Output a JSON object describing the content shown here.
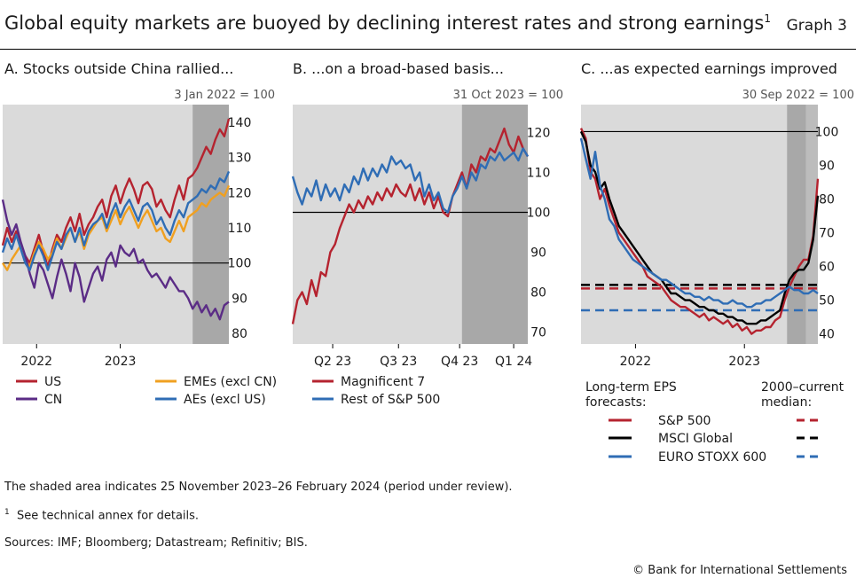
{
  "header": {
    "title": "Global equity markets are buoyed by declining interest rates and strong earnings",
    "title_footnote": "1",
    "graph_label": "Graph 3"
  },
  "chart_data": [
    {
      "type": "line",
      "panel_title": "A. Stocks outside China rallied...",
      "base_note": "3 Jan 2022 = 100",
      "x_tick_labels": [
        "2022",
        "2023"
      ],
      "y_ticks": [
        80,
        90,
        100,
        110,
        120,
        130,
        140
      ],
      "ylim": [
        77,
        145
      ],
      "xlim": [
        0,
        100
      ],
      "x_ticks": [
        15,
        52
      ],
      "shaded": [
        84,
        100
      ],
      "reference_line": 100,
      "legend": [
        "US",
        "EMEs (excl CN)",
        "CN",
        "AEs (excl US)"
      ],
      "series": [
        {
          "name": "US",
          "color": "#b5232f",
          "x": [
            0,
            2,
            4,
            6,
            8,
            10,
            12,
            14,
            16,
            18,
            20,
            22,
            24,
            26,
            28,
            30,
            32,
            34,
            36,
            38,
            40,
            42,
            44,
            46,
            48,
            50,
            52,
            54,
            56,
            58,
            60,
            62,
            64,
            66,
            68,
            70,
            72,
            74,
            76,
            78,
            80,
            82,
            84,
            86,
            88,
            90,
            92,
            94,
            96,
            98,
            100
          ],
          "values": [
            105,
            110,
            106,
            109,
            105,
            102,
            100,
            104,
            108,
            103,
            99,
            104,
            108,
            106,
            110,
            113,
            109,
            114,
            108,
            111,
            113,
            116,
            118,
            113,
            119,
            122,
            117,
            121,
            124,
            121,
            117,
            122,
            123,
            121,
            116,
            118,
            115,
            113,
            118,
            122,
            118,
            124,
            125,
            127,
            130,
            133,
            131,
            135,
            138,
            136,
            141
          ]
        },
        {
          "name": "EMEs (excl CN)",
          "color": "#f0a020",
          "x": [
            0,
            2,
            4,
            6,
            8,
            10,
            12,
            14,
            16,
            18,
            20,
            22,
            24,
            26,
            28,
            30,
            32,
            34,
            36,
            38,
            40,
            42,
            44,
            46,
            48,
            50,
            52,
            54,
            56,
            58,
            60,
            62,
            64,
            66,
            68,
            70,
            72,
            74,
            76,
            78,
            80,
            82,
            84,
            86,
            88,
            90,
            92,
            94,
            96,
            98,
            100
          ],
          "values": [
            100,
            98,
            101,
            103,
            105,
            101,
            99,
            103,
            106,
            104,
            101,
            103,
            107,
            104,
            107,
            110,
            106,
            109,
            104,
            108,
            110,
            112,
            113,
            109,
            112,
            115,
            111,
            114,
            116,
            113,
            110,
            113,
            115,
            112,
            109,
            110,
            107,
            106,
            109,
            112,
            109,
            113,
            114,
            115,
            117,
            116,
            118,
            119,
            120,
            119,
            122
          ]
        },
        {
          "name": "CN",
          "color": "#5b2c86",
          "x": [
            0,
            2,
            4,
            6,
            8,
            10,
            12,
            14,
            16,
            18,
            20,
            22,
            24,
            26,
            28,
            30,
            32,
            34,
            36,
            38,
            40,
            42,
            44,
            46,
            48,
            50,
            52,
            54,
            56,
            58,
            60,
            62,
            64,
            66,
            68,
            70,
            72,
            74,
            76,
            78,
            80,
            82,
            84,
            86,
            88,
            90,
            92,
            94,
            96,
            98,
            100
          ],
          "values": [
            118,
            112,
            108,
            111,
            106,
            102,
            97,
            93,
            100,
            98,
            94,
            90,
            96,
            101,
            97,
            92,
            100,
            96,
            89,
            93,
            97,
            99,
            95,
            101,
            103,
            99,
            105,
            103,
            102,
            104,
            100,
            101,
            98,
            96,
            97,
            95,
            93,
            96,
            94,
            92,
            92,
            90,
            87,
            89,
            86,
            88,
            85,
            87,
            84,
            88,
            89
          ]
        },
        {
          "name": "AEs (excl US)",
          "color": "#2f6db5",
          "x": [
            0,
            2,
            4,
            6,
            8,
            10,
            12,
            14,
            16,
            18,
            20,
            22,
            24,
            26,
            28,
            30,
            32,
            34,
            36,
            38,
            40,
            42,
            44,
            46,
            48,
            50,
            52,
            54,
            56,
            58,
            60,
            62,
            64,
            66,
            68,
            70,
            72,
            74,
            76,
            78,
            80,
            82,
            84,
            86,
            88,
            90,
            92,
            94,
            96,
            98,
            100
          ],
          "values": [
            103,
            107,
            104,
            108,
            104,
            100,
            98,
            102,
            105,
            102,
            98,
            102,
            106,
            104,
            108,
            110,
            106,
            110,
            105,
            109,
            111,
            112,
            114,
            110,
            114,
            117,
            113,
            116,
            118,
            115,
            112,
            116,
            117,
            115,
            111,
            113,
            110,
            108,
            112,
            115,
            113,
            117,
            118,
            119,
            121,
            120,
            122,
            121,
            124,
            123,
            126
          ]
        }
      ]
    },
    {
      "type": "line",
      "panel_title": "B. ...on a broad-based basis...",
      "base_note": "31 Oct 2023 = 100",
      "x_tick_labels": [
        "Q2 23",
        "Q3 23",
        "Q4 23",
        "Q1 24"
      ],
      "y_ticks": [
        70,
        80,
        90,
        100,
        110,
        120
      ],
      "ylim": [
        67,
        127
      ],
      "xlim": [
        0,
        100
      ],
      "x_ticks": [
        17,
        45,
        71,
        94
      ],
      "shaded": [
        72,
        100
      ],
      "reference_line": 100,
      "legend": [
        "Magnificent 7",
        "Rest of S&P 500"
      ],
      "series": [
        {
          "name": "Magnificent 7",
          "color": "#b5232f",
          "x": [
            0,
            2,
            4,
            6,
            8,
            10,
            12,
            14,
            16,
            18,
            20,
            22,
            24,
            26,
            28,
            30,
            32,
            34,
            36,
            38,
            40,
            42,
            44,
            46,
            48,
            50,
            52,
            54,
            56,
            58,
            60,
            62,
            64,
            66,
            68,
            70,
            72,
            74,
            76,
            78,
            80,
            82,
            84,
            86,
            88,
            90,
            92,
            94,
            96,
            98,
            100
          ],
          "values": [
            72,
            78,
            80,
            77,
            83,
            79,
            85,
            84,
            90,
            92,
            96,
            99,
            102,
            100,
            103,
            101,
            104,
            102,
            105,
            103,
            106,
            104,
            107,
            105,
            104,
            107,
            103,
            106,
            102,
            105,
            101,
            104,
            100,
            99,
            104,
            107,
            110,
            106,
            112,
            110,
            114,
            113,
            116,
            115,
            118,
            121,
            117,
            115,
            119,
            116,
            114
          ]
        },
        {
          "name": "Rest of S&P 500",
          "color": "#2f6db5",
          "x": [
            0,
            2,
            4,
            6,
            8,
            10,
            12,
            14,
            16,
            18,
            20,
            22,
            24,
            26,
            28,
            30,
            32,
            34,
            36,
            38,
            40,
            42,
            44,
            46,
            48,
            50,
            52,
            54,
            56,
            58,
            60,
            62,
            64,
            66,
            68,
            70,
            72,
            74,
            76,
            78,
            80,
            82,
            84,
            86,
            88,
            90,
            92,
            94,
            96,
            98,
            100
          ],
          "values": [
            109,
            105,
            102,
            106,
            104,
            108,
            103,
            107,
            104,
            106,
            103,
            107,
            105,
            109,
            107,
            111,
            108,
            111,
            109,
            112,
            110,
            114,
            112,
            113,
            111,
            112,
            108,
            110,
            104,
            107,
            103,
            105,
            101,
            100,
            104,
            106,
            109,
            106,
            110,
            108,
            112,
            111,
            114,
            113,
            115,
            113,
            114,
            115,
            113,
            116,
            114
          ]
        }
      ]
    },
    {
      "type": "line",
      "panel_title": "C. ...as expected earnings improved",
      "base_note": "30 Sep 2022 = 100",
      "x_tick_labels": [
        "2022",
        "2023"
      ],
      "y_ticks": [
        40,
        50,
        60,
        70,
        80,
        90,
        100
      ],
      "ylim": [
        37,
        108
      ],
      "xlim": [
        0,
        100
      ],
      "x_ticks": [
        23,
        69
      ],
      "shaded": [
        87,
        95
      ],
      "shaded_light": [
        95,
        100
      ],
      "reference_line": 100,
      "legend_title_left": "Long-term EPS forecasts:",
      "legend_title_right": "2000–current median:",
      "legend": [
        "S&P 500",
        "MSCI Global",
        "EURO STOXX 600"
      ],
      "medians": [
        {
          "name": "S&P 500",
          "color": "#b5232f",
          "value": 54
        },
        {
          "name": "MSCI Global",
          "color": "#000000",
          "value": 54
        },
        {
          "name": "EURO STOXX 600",
          "color": "#2f6db5",
          "value": 47
        }
      ],
      "series": [
        {
          "name": "S&P 500",
          "color": "#b5232f",
          "x": [
            0,
            2,
            4,
            6,
            8,
            10,
            12,
            14,
            16,
            18,
            20,
            22,
            24,
            26,
            28,
            30,
            32,
            34,
            36,
            38,
            40,
            42,
            44,
            46,
            48,
            50,
            52,
            54,
            56,
            58,
            60,
            62,
            64,
            66,
            68,
            70,
            72,
            74,
            76,
            78,
            80,
            82,
            84,
            86,
            88,
            90,
            92,
            94,
            96,
            98,
            100
          ],
          "values": [
            101,
            98,
            88,
            86,
            80,
            83,
            78,
            74,
            70,
            68,
            66,
            64,
            62,
            60,
            57,
            56,
            55,
            54,
            52,
            50,
            49,
            48,
            48,
            47,
            46,
            45,
            46,
            44,
            45,
            44,
            43,
            44,
            42,
            43,
            41,
            42,
            40,
            41,
            41,
            42,
            42,
            44,
            45,
            50,
            54,
            57,
            60,
            62,
            62,
            69,
            86
          ]
        },
        {
          "name": "MSCI Global",
          "color": "#000000",
          "x": [
            0,
            2,
            4,
            6,
            8,
            10,
            12,
            14,
            16,
            18,
            20,
            22,
            24,
            26,
            28,
            30,
            32,
            34,
            36,
            38,
            40,
            42,
            44,
            46,
            48,
            50,
            52,
            54,
            56,
            58,
            60,
            62,
            64,
            66,
            68,
            70,
            72,
            74,
            76,
            78,
            80,
            82,
            84,
            86,
            88,
            90,
            92,
            94,
            96,
            98,
            100
          ],
          "values": [
            100,
            97,
            90,
            88,
            83,
            85,
            80,
            76,
            72,
            70,
            68,
            66,
            64,
            62,
            60,
            58,
            57,
            56,
            54,
            52,
            52,
            51,
            50,
            50,
            49,
            48,
            48,
            47,
            47,
            46,
            46,
            45,
            45,
            44,
            44,
            43,
            43,
            43,
            44,
            44,
            45,
            46,
            47,
            52,
            56,
            58,
            59,
            59,
            61,
            68,
            81
          ]
        },
        {
          "name": "EURO STOXX 600",
          "color": "#2f6db5",
          "x": [
            0,
            2,
            4,
            6,
            8,
            10,
            12,
            14,
            16,
            18,
            20,
            22,
            24,
            26,
            28,
            30,
            32,
            34,
            36,
            38,
            40,
            42,
            44,
            46,
            48,
            50,
            52,
            54,
            56,
            58,
            60,
            62,
            64,
            66,
            68,
            70,
            72,
            74,
            76,
            78,
            80,
            82,
            84,
            86,
            88,
            90,
            92,
            94,
            96,
            98,
            100
          ],
          "values": [
            98,
            92,
            86,
            94,
            84,
            80,
            74,
            72,
            68,
            66,
            64,
            62,
            61,
            60,
            59,
            58,
            57,
            56,
            56,
            55,
            54,
            53,
            52,
            52,
            51,
            51,
            50,
            51,
            50,
            50,
            49,
            49,
            50,
            49,
            49,
            48,
            48,
            49,
            49,
            50,
            50,
            51,
            52,
            53,
            54,
            53,
            53,
            52,
            52,
            53,
            52
          ]
        }
      ]
    }
  ],
  "footnotes": {
    "shaded_note": "The shaded area indicates 25 November 2023–26 February 2024 (period under review).",
    "note_marker": "1",
    "note_text": "See technical annex for details.",
    "sources": "Sources: IMF; Bloomberg; Datastream; Refinitiv; BIS.",
    "copyright": "© Bank for International Settlements"
  }
}
